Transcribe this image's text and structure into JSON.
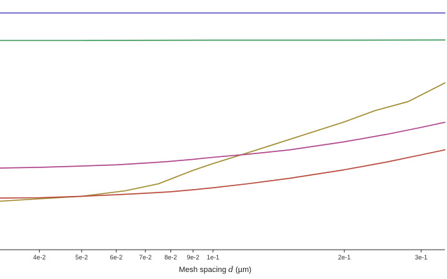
{
  "chart_data": {
    "type": "line",
    "title": "",
    "xlabel": {
      "prefix": "Mesh spacing ",
      "variable": "d",
      "unit": " (µm)"
    },
    "ylabel": "",
    "x_scale": "log",
    "xlim": [
      0.0325,
      0.34
    ],
    "ylim": [
      0,
      1
    ],
    "grid": false,
    "x_ticks": [
      {
        "value": 0.04,
        "label": "4e-2"
      },
      {
        "value": 0.05,
        "label": "5e-2"
      },
      {
        "value": 0.06,
        "label": "6e-2"
      },
      {
        "value": 0.07,
        "label": "7e-2"
      },
      {
        "value": 0.08,
        "label": "8e-2"
      },
      {
        "value": 0.09,
        "label": "9e-2"
      },
      {
        "value": 0.1,
        "label": "1e-1"
      },
      {
        "value": 0.2,
        "label": "2e-1"
      },
      {
        "value": 0.3,
        "label": "3e-1"
      }
    ],
    "series": [
      {
        "color": "#5b55c8",
        "x": [
          0.0325,
          0.05,
          0.1,
          0.2,
          0.34
        ],
        "y": [
          0.948,
          0.948,
          0.948,
          0.948,
          0.948
        ]
      },
      {
        "color": "#3f9a5e",
        "x": [
          0.0325,
          0.05,
          0.1,
          0.2,
          0.34
        ],
        "y": [
          0.838,
          0.838,
          0.839,
          0.839,
          0.84
        ]
      },
      {
        "color": "#a08a2a",
        "x": [
          0.0325,
          0.04,
          0.05,
          0.063,
          0.075,
          0.09,
          0.1,
          0.12,
          0.15,
          0.2,
          0.235,
          0.28,
          0.34
        ],
        "y": [
          0.194,
          0.204,
          0.214,
          0.236,
          0.264,
          0.318,
          0.345,
          0.388,
          0.442,
          0.512,
          0.557,
          0.593,
          0.668
        ]
      },
      {
        "color": "#b0458c",
        "x": [
          0.0325,
          0.04,
          0.05,
          0.06,
          0.07,
          0.08,
          0.09,
          0.1,
          0.12,
          0.15,
          0.2,
          0.25,
          0.3,
          0.34
        ],
        "y": [
          0.327,
          0.33,
          0.335,
          0.34,
          0.347,
          0.354,
          0.362,
          0.37,
          0.382,
          0.4,
          0.432,
          0.462,
          0.49,
          0.51
        ]
      },
      {
        "color": "#b8483a",
        "x": [
          0.0325,
          0.04,
          0.05,
          0.06,
          0.07,
          0.08,
          0.09,
          0.1,
          0.12,
          0.15,
          0.2,
          0.25,
          0.3,
          0.34
        ],
        "y": [
          0.207,
          0.208,
          0.214,
          0.22,
          0.226,
          0.232,
          0.24,
          0.248,
          0.264,
          0.286,
          0.32,
          0.351,
          0.38,
          0.4
        ]
      }
    ]
  }
}
